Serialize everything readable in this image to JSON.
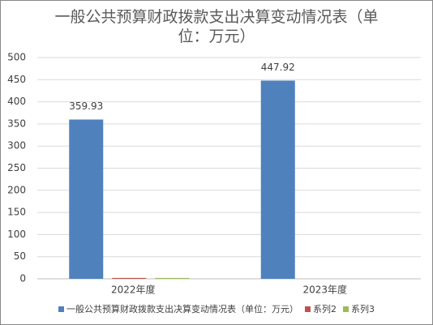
{
  "chart_data": {
    "type": "bar",
    "title": "一般公共预算财政拨款支出决算变动情况表（单位：万元）",
    "categories": [
      "2022年度",
      "2023年度"
    ],
    "series": [
      {
        "name": "一般公共预算财政拨款支出决算变动情况表（单位：万元）",
        "color": "#4f81bd",
        "values": [
          359.93,
          447.92
        ],
        "labels": true
      },
      {
        "name": "系列2",
        "color": "#c0504d",
        "values": [
          2,
          0
        ]
      },
      {
        "name": "系列3",
        "color": "#9bbb59",
        "values": [
          2,
          0
        ]
      }
    ],
    "ylim": [
      0,
      500
    ],
    "yticks": [
      0,
      50,
      100,
      150,
      200,
      250,
      300,
      350,
      400,
      450,
      500
    ],
    "grid": true,
    "legend": "bottom"
  }
}
